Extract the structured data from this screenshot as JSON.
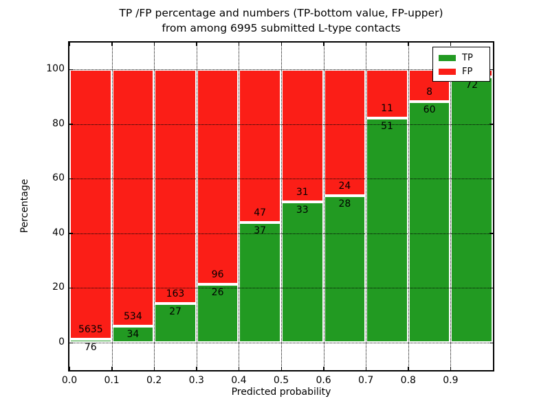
{
  "title": {
    "line1": "TP /FP percentage and numbers (TP-bottom value, FP-upper)",
    "line2": "from among 6995 submitted L-type contacts"
  },
  "chart_data": {
    "type": "bar",
    "stacked": true,
    "orientation": "vertical",
    "xlabel": "Predicted probability",
    "ylabel": "Percentage",
    "x_bin_edges": [
      0.0,
      0.1,
      0.2,
      0.3,
      0.4,
      0.5,
      0.6,
      0.7,
      0.8,
      0.9,
      1.0
    ],
    "x_tick_labels": [
      "0.0",
      "0.1",
      "0.2",
      "0.3",
      "0.4",
      "0.5",
      "0.6",
      "0.7",
      "0.8",
      "0.9"
    ],
    "y_ticks": [
      0,
      20,
      40,
      60,
      80,
      100
    ],
    "ylim": [
      -10.5,
      110.5
    ],
    "grid": "dotted black, horizontal at y-ticks and vertical at x-ticks, drawn over bars",
    "series": [
      {
        "name": "TP",
        "color": "#229a22",
        "counts": [
          76,
          34,
          27,
          26,
          37,
          33,
          28,
          51,
          60,
          72
        ]
      },
      {
        "name": "FP",
        "color": "#fb1e17",
        "counts": [
          5635,
          534,
          163,
          96,
          47,
          31,
          24,
          11,
          8,
          2
        ]
      }
    ],
    "tp_percent_of_bin": [
      1.33,
      5.99,
      14.21,
      21.31,
      44.05,
      51.56,
      53.85,
      82.26,
      88.24,
      97.3
    ],
    "tp_count_labels": [
      "76",
      "34",
      "27",
      "26",
      "37",
      "33",
      "28",
      "51",
      "60",
      "72"
    ],
    "fp_count_labels": [
      "5635",
      "534",
      "163",
      "96",
      "47",
      "31",
      "24",
      "11",
      "8",
      ""
    ],
    "fp_label_visible": [
      true,
      true,
      true,
      true,
      true,
      true,
      true,
      true,
      true,
      false
    ],
    "bar_edge_color": "#ffffff",
    "legend": {
      "position": "upper right",
      "entries": [
        {
          "label": "TP",
          "color": "#229a22"
        },
        {
          "label": "FP",
          "color": "#fb1e17"
        }
      ]
    }
  }
}
